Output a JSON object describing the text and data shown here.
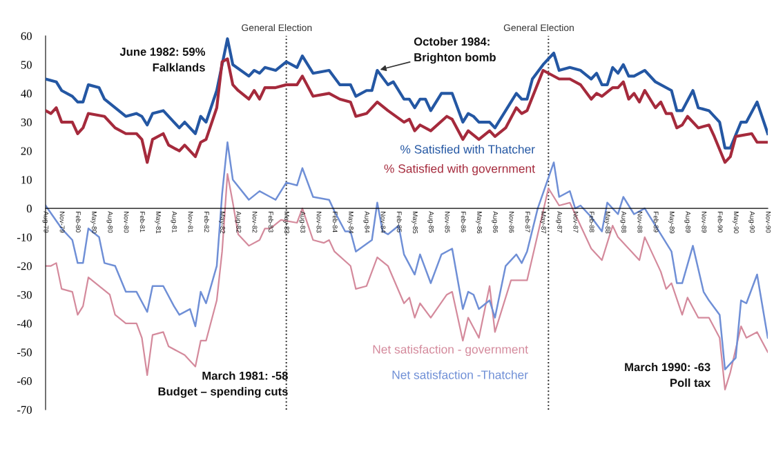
{
  "chart_data": {
    "type": "line",
    "xlim": [
      "1979-08",
      "1990-11"
    ],
    "ylim": [
      -70,
      60
    ],
    "yticks": [
      -70,
      -60,
      -50,
      -40,
      -30,
      -20,
      -10,
      0,
      10,
      20,
      30,
      40,
      50,
      60
    ],
    "xticks": [
      {
        "value": "1979-08",
        "label": "Aug-79"
      },
      {
        "value": "1979-11",
        "label": "Nov-79"
      },
      {
        "value": "1980-02",
        "label": "Feb-80"
      },
      {
        "value": "1980-05",
        "label": "May-80"
      },
      {
        "value": "1980-08",
        "label": "Aug-80"
      },
      {
        "value": "1980-11",
        "label": "Nov-80"
      },
      {
        "value": "1981-02",
        "label": "Feb-81"
      },
      {
        "value": "1981-05",
        "label": "May-81"
      },
      {
        "value": "1981-08",
        "label": "Aug-81"
      },
      {
        "value": "1981-11",
        "label": "Nov-81"
      },
      {
        "value": "1982-02",
        "label": "Feb-82"
      },
      {
        "value": "1982-05",
        "label": "May-82"
      },
      {
        "value": "1982-08",
        "label": "Aug-82"
      },
      {
        "value": "1982-11",
        "label": "Nov-82"
      },
      {
        "value": "1983-02",
        "label": "Feb-83"
      },
      {
        "value": "1983-05",
        "label": "May-83"
      },
      {
        "value": "1983-08",
        "label": "Aug-83"
      },
      {
        "value": "1983-11",
        "label": "Nov-83"
      },
      {
        "value": "1984-02",
        "label": "Feb-84"
      },
      {
        "value": "1984-05",
        "label": "May-84"
      },
      {
        "value": "1984-08",
        "label": "Aug-84"
      },
      {
        "value": "1984-11",
        "label": "Nov-84"
      },
      {
        "value": "1985-02",
        "label": "Feb-85"
      },
      {
        "value": "1985-05",
        "label": "May-85"
      },
      {
        "value": "1985-08",
        "label": "Aug-85"
      },
      {
        "value": "1985-11",
        "label": "Nov-85"
      },
      {
        "value": "1986-02",
        "label": "Feb-86"
      },
      {
        "value": "1986-05",
        "label": "May-86"
      },
      {
        "value": "1986-08",
        "label": "Aug-86"
      },
      {
        "value": "1986-11",
        "label": "Nov-86"
      },
      {
        "value": "1987-02",
        "label": "Feb-87"
      },
      {
        "value": "1987-05",
        "label": "May-87"
      },
      {
        "value": "1987-08",
        "label": "Aug-87"
      },
      {
        "value": "1987-11",
        "label": "Nov-87"
      },
      {
        "value": "1988-02",
        "label": "Feb-88"
      },
      {
        "value": "1988-05",
        "label": "May-88"
      },
      {
        "value": "1988-08",
        "label": "Aug-88"
      },
      {
        "value": "1988-11",
        "label": "Nov-88"
      },
      {
        "value": "1989-02",
        "label": "Feb-89"
      },
      {
        "value": "1989-05",
        "label": "May-89"
      },
      {
        "value": "1989-08",
        "label": "Aug-89"
      },
      {
        "value": "1989-11",
        "label": "Nov-89"
      },
      {
        "value": "1990-02",
        "label": "Feb-90"
      },
      {
        "value": "1990-05",
        "label": "May-90"
      },
      {
        "value": "1990-08",
        "label": "Aug-90"
      },
      {
        "value": "1990-11",
        "label": "Nov-90"
      }
    ],
    "series": [
      {
        "name": "% Satisfied with Thatcher",
        "color": "#2457a3",
        "x": [
          "1979-08",
          "1979-10",
          "1979-11",
          "1980-01",
          "1980-02",
          "1980-03",
          "1980-04",
          "1980-06",
          "1980-07",
          "1980-09",
          "1980-11",
          "1981-01",
          "1981-02",
          "1981-03",
          "1981-04",
          "1981-06",
          "1981-08",
          "1981-09",
          "1981-10",
          "1981-12",
          "1982-01",
          "1982-02",
          "1982-04",
          "1982-06",
          "1982-07",
          "1982-10",
          "1982-11",
          "1982-12",
          "1983-01",
          "1983-03",
          "1983-05",
          "1983-07",
          "1983-08",
          "1983-10",
          "1984-01",
          "1984-03",
          "1984-05",
          "1984-06",
          "1984-08",
          "1984-09",
          "1984-10",
          "1984-12",
          "1985-01",
          "1985-03",
          "1985-04",
          "1985-05",
          "1985-06",
          "1985-07",
          "1985-08",
          "1985-10",
          "1985-12",
          "1986-02",
          "1986-03",
          "1986-04",
          "1986-05",
          "1986-07",
          "1986-08",
          "1986-10",
          "1986-12",
          "1987-01",
          "1987-02",
          "1987-03",
          "1987-05",
          "1987-07",
          "1987-08",
          "1987-10",
          "1987-12",
          "1988-02",
          "1988-03",
          "1988-04",
          "1988-05",
          "1988-06",
          "1988-07",
          "1988-08",
          "1988-09",
          "1988-10",
          "1988-12",
          "1989-02",
          "1989-05",
          "1989-06",
          "1989-07",
          "1989-09",
          "1989-10",
          "1989-12",
          "1990-02",
          "1990-03",
          "1990-04",
          "1990-06",
          "1990-07",
          "1990-09",
          "1990-11"
        ],
        "values": [
          45,
          44,
          41,
          39,
          37,
          37,
          43,
          42,
          38,
          35,
          32,
          33,
          32,
          29,
          33,
          34,
          30,
          28,
          30,
          26,
          32,
          30,
          41,
          59,
          50,
          46,
          48,
          47,
          49,
          48,
          51,
          49,
          53,
          47,
          48,
          43,
          43,
          39,
          41,
          41,
          48,
          43,
          44,
          38,
          38,
          35,
          38,
          38,
          34,
          40,
          40,
          30,
          33,
          32,
          30,
          30,
          28,
          34,
          40,
          38,
          38,
          45,
          50,
          54,
          48,
          49,
          48,
          45,
          47,
          43,
          43,
          49,
          47,
          50,
          46,
          46,
          48,
          44,
          41,
          34,
          34,
          41,
          35,
          34,
          30,
          21,
          21,
          30,
          30,
          37,
          26
        ]
      },
      {
        "name": "% Satisfied with government",
        "color": "#a52a3c",
        "x": [
          "1979-08",
          "1979-09",
          "1979-10",
          "1979-11",
          "1980-01",
          "1980-02",
          "1980-03",
          "1980-04",
          "1980-07",
          "1980-09",
          "1980-11",
          "1981-01",
          "1981-02",
          "1981-03",
          "1981-04",
          "1981-06",
          "1981-07",
          "1981-09",
          "1981-10",
          "1981-12",
          "1982-01",
          "1982-02",
          "1982-04",
          "1982-05",
          "1982-06",
          "1982-07",
          "1982-08",
          "1982-10",
          "1982-11",
          "1982-12",
          "1983-01",
          "1983-03",
          "1983-05",
          "1983-07",
          "1983-08",
          "1983-10",
          "1984-01",
          "1984-03",
          "1984-05",
          "1984-06",
          "1984-08",
          "1984-10",
          "1984-12",
          "1985-03",
          "1985-04",
          "1985-05",
          "1985-06",
          "1985-08",
          "1985-11",
          "1985-12",
          "1986-02",
          "1986-03",
          "1986-05",
          "1986-07",
          "1986-08",
          "1986-10",
          "1986-12",
          "1987-01",
          "1987-02",
          "1987-05",
          "1987-08",
          "1987-10",
          "1987-12",
          "1988-02",
          "1988-03",
          "1988-04",
          "1988-06",
          "1988-07",
          "1988-08",
          "1988-09",
          "1988-10",
          "1988-11",
          "1988-12",
          "1989-02",
          "1989-03",
          "1989-04",
          "1989-05",
          "1989-06",
          "1989-07",
          "1989-08",
          "1989-10",
          "1989-12",
          "1990-01",
          "1990-03",
          "1990-04",
          "1990-05",
          "1990-08",
          "1990-09",
          "1990-11"
        ],
        "values": [
          34,
          33,
          35,
          30,
          30,
          26,
          28,
          33,
          32,
          28,
          26,
          26,
          24,
          16,
          24,
          26,
          22,
          20,
          22,
          18,
          23,
          24,
          35,
          51,
          52,
          43,
          41,
          38,
          41,
          38,
          42,
          42,
          43,
          43,
          46,
          39,
          40,
          38,
          37,
          32,
          33,
          37,
          34,
          30,
          31,
          27,
          29,
          27,
          32,
          31,
          24,
          27,
          24,
          27,
          25,
          28,
          35,
          33,
          34,
          48,
          45,
          45,
          43,
          38,
          40,
          39,
          42,
          42,
          44,
          38,
          40,
          37,
          41,
          35,
          37,
          33,
          33,
          28,
          29,
          32,
          28,
          29,
          25,
          16,
          18,
          25,
          26,
          23,
          23
        ]
      },
      {
        "name": "Net satisfaction - government",
        "color": "#d48a9c",
        "x": [
          "1979-08",
          "1979-09",
          "1979-10",
          "1979-11",
          "1980-01",
          "1980-02",
          "1980-03",
          "1980-04",
          "1980-08",
          "1980-09",
          "1980-11",
          "1981-01",
          "1981-02",
          "1981-03",
          "1981-04",
          "1981-06",
          "1981-07",
          "1981-10",
          "1981-12",
          "1982-01",
          "1982-02",
          "1982-04",
          "1982-05",
          "1982-06",
          "1982-07",
          "1982-08",
          "1982-10",
          "1982-12",
          "1983-01",
          "1983-02",
          "1983-04",
          "1983-07",
          "1983-08",
          "1983-10",
          "1983-12",
          "1984-01",
          "1984-02",
          "1984-05",
          "1984-06",
          "1984-08",
          "1984-10",
          "1984-12",
          "1985-03",
          "1985-04",
          "1985-05",
          "1985-06",
          "1985-08",
          "1985-11",
          "1985-12",
          "1986-02",
          "1986-03",
          "1986-05",
          "1986-07",
          "1986-08",
          "1986-11",
          "1987-02",
          "1987-04",
          "1987-06",
          "1987-08",
          "1987-10",
          "1987-11",
          "1988-02",
          "1988-04",
          "1988-06",
          "1988-07",
          "1988-09",
          "1988-11",
          "1988-12",
          "1989-03",
          "1989-04",
          "1989-05",
          "1989-07",
          "1989-08",
          "1989-10",
          "1989-12",
          "1990-02",
          "1990-03",
          "1990-04",
          "1990-06",
          "1990-07",
          "1990-09",
          "1990-11"
        ],
        "values": [
          -20,
          -20,
          -19,
          -28,
          -29,
          -37,
          -34,
          -24,
          -30,
          -37,
          -40,
          -40,
          -45,
          -58,
          -44,
          -43,
          -48,
          -51,
          -55,
          -46,
          -46,
          -32,
          -15,
          12,
          2,
          -9,
          -13,
          -11,
          -7,
          -7,
          -4,
          -5,
          0,
          -11,
          -12,
          -11,
          -15,
          -20,
          -28,
          -27,
          -17,
          -20,
          -33,
          -31,
          -38,
          -33,
          -38,
          -30,
          -29,
          -46,
          -38,
          -45,
          -27,
          -43,
          -25,
          -25,
          -9,
          7,
          1,
          2,
          -2,
          -14,
          -18,
          -6,
          -10,
          -14,
          -18,
          -10,
          -22,
          -28,
          -26,
          -37,
          -31,
          -38,
          -38,
          -45,
          -63,
          -57,
          -41,
          -45,
          -43,
          -50
        ]
      },
      {
        "name": "Net satisfaction -Thatcher",
        "color": "#6f8fd6",
        "x": [
          "1979-08",
          "1979-11",
          "1980-01",
          "1980-02",
          "1980-03",
          "1980-04",
          "1980-06",
          "1980-07",
          "1980-09",
          "1980-11",
          "1981-01",
          "1981-03",
          "1981-04",
          "1981-06",
          "1981-08",
          "1981-09",
          "1981-11",
          "1981-12",
          "1982-01",
          "1982-02",
          "1982-04",
          "1982-05",
          "1982-06",
          "1982-07",
          "1982-10",
          "1982-12",
          "1983-02",
          "1983-03",
          "1983-05",
          "1983-07",
          "1983-08",
          "1983-10",
          "1984-01",
          "1984-02",
          "1984-04",
          "1984-05",
          "1984-06",
          "1984-09",
          "1984-10",
          "1984-11",
          "1984-12",
          "1985-02",
          "1985-03",
          "1985-05",
          "1985-06",
          "1985-08",
          "1985-10",
          "1985-12",
          "1986-02",
          "1986-03",
          "1986-04",
          "1986-05",
          "1986-07",
          "1986-08",
          "1986-10",
          "1986-12",
          "1987-01",
          "1987-02",
          "1987-04",
          "1987-07",
          "1987-08",
          "1987-10",
          "1987-11",
          "1987-12",
          "1988-02",
          "1988-04",
          "1988-05",
          "1988-07",
          "1988-08",
          "1988-10",
          "1988-12",
          "1989-02",
          "1989-03",
          "1989-05",
          "1989-06",
          "1989-07",
          "1989-09",
          "1989-11",
          "1989-12",
          "1990-02",
          "1990-03",
          "1990-05",
          "1990-06",
          "1990-07",
          "1990-09",
          "1990-11"
        ],
        "values": [
          1,
          -7,
          -11,
          -19,
          -19,
          -7,
          -10,
          -19,
          -20,
          -29,
          -29,
          -36,
          -27,
          -27,
          -34,
          -37,
          -35,
          -41,
          -29,
          -33,
          -20,
          5,
          23,
          10,
          3,
          6,
          4,
          3,
          9,
          8,
          14,
          4,
          3,
          -1,
          -8,
          -8,
          -15,
          -11,
          2,
          -8,
          -9,
          -6,
          -16,
          -23,
          -16,
          -26,
          -16,
          -14,
          -35,
          -29,
          -30,
          -35,
          -32,
          -38,
          -20,
          -16,
          -19,
          -15,
          0,
          16,
          4,
          6,
          0,
          1,
          -3,
          -8,
          2,
          -2,
          4,
          -2,
          0,
          -6,
          -9,
          -15,
          -26,
          -26,
          -13,
          -29,
          -32,
          -37,
          -56,
          -52,
          -32,
          -33,
          -23,
          -45
        ]
      }
    ],
    "ref_lines": [
      {
        "axis": "x",
        "value": "1983-05",
        "label": "General Election",
        "color": "#222222",
        "line_style": "dotted"
      },
      {
        "axis": "x",
        "value": "1987-06",
        "label": "General Election",
        "color": "#222222",
        "line_style": "dotted"
      }
    ],
    "annotations": [
      {
        "text": "June 1982: 59%\nFalklands",
        "x": "1982-06",
        "y": 59
      },
      {
        "text": "October 1984:\nBrighton bomb",
        "x": "1984-10",
        "y": 48
      },
      {
        "text": "March 1981: -58\nBudget – spending cuts",
        "x": "1981-03",
        "y": -58
      },
      {
        "text": "March 1990: -63\nPoll tax",
        "x": "1990-03",
        "y": -63
      }
    ],
    "grid": false,
    "legend": false,
    "marker": "none",
    "line_style": "solid"
  }
}
